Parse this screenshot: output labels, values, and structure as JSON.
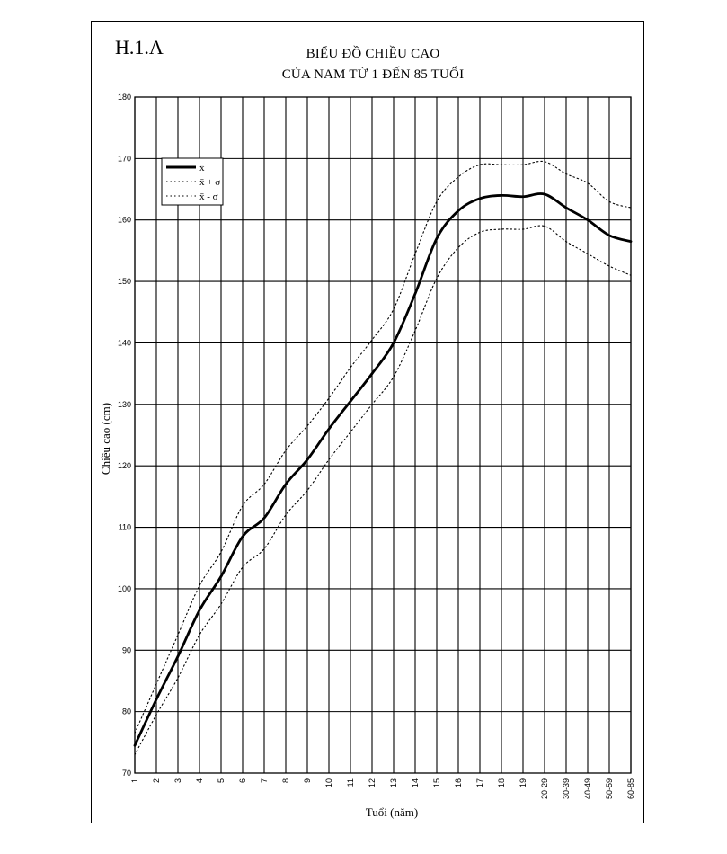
{
  "figure_label": "H.1.A",
  "chart_data": {
    "type": "line",
    "title_line1": "BIỂU ĐỒ CHIỀU CAO",
    "title_line2": "CỦA NAM TỪ 1 ĐẾN 85 TUỔI",
    "xlabel": "Tuổi (năm)",
    "ylabel": "Chiều cao (cm)",
    "ylim": [
      70,
      180
    ],
    "yticks": [
      70,
      80,
      90,
      100,
      110,
      120,
      130,
      140,
      150,
      160,
      170,
      180
    ],
    "grid": true,
    "legend_position": "top-left",
    "categories": [
      "1",
      "2",
      "3",
      "4",
      "5",
      "6",
      "7",
      "8",
      "9",
      "10",
      "11",
      "12",
      "13",
      "14",
      "15",
      "16",
      "17",
      "18",
      "19",
      "20-29",
      "30-39",
      "40-49",
      "50-59",
      "60-85"
    ],
    "series": [
      {
        "name": "x̄",
        "style": "solid",
        "values": [
          74.5,
          82,
          89,
          96.5,
          102,
          108.5,
          111.5,
          117,
          121,
          126,
          130.5,
          135,
          140,
          148,
          157,
          161.5,
          163.5,
          164,
          163.8,
          164.2,
          162,
          160,
          157.5,
          156.5
        ]
      },
      {
        "name": "x̄ + σ",
        "style": "dotted",
        "values": [
          76.5,
          84.5,
          92.5,
          100.5,
          106,
          113.5,
          117,
          122.5,
          126.5,
          131,
          136,
          140.5,
          145.5,
          154.5,
          163,
          167,
          169,
          169,
          169,
          169.5,
          167.5,
          166,
          163,
          162
        ]
      },
      {
        "name": "x̄ - σ",
        "style": "dotted",
        "values": [
          73,
          79.5,
          85.5,
          92.5,
          97.5,
          103.5,
          106.5,
          112,
          116,
          121,
          125.5,
          130,
          134.5,
          142,
          150.5,
          155.5,
          158,
          158.5,
          158.5,
          159,
          156.5,
          154.5,
          152.5,
          151
        ]
      }
    ]
  }
}
